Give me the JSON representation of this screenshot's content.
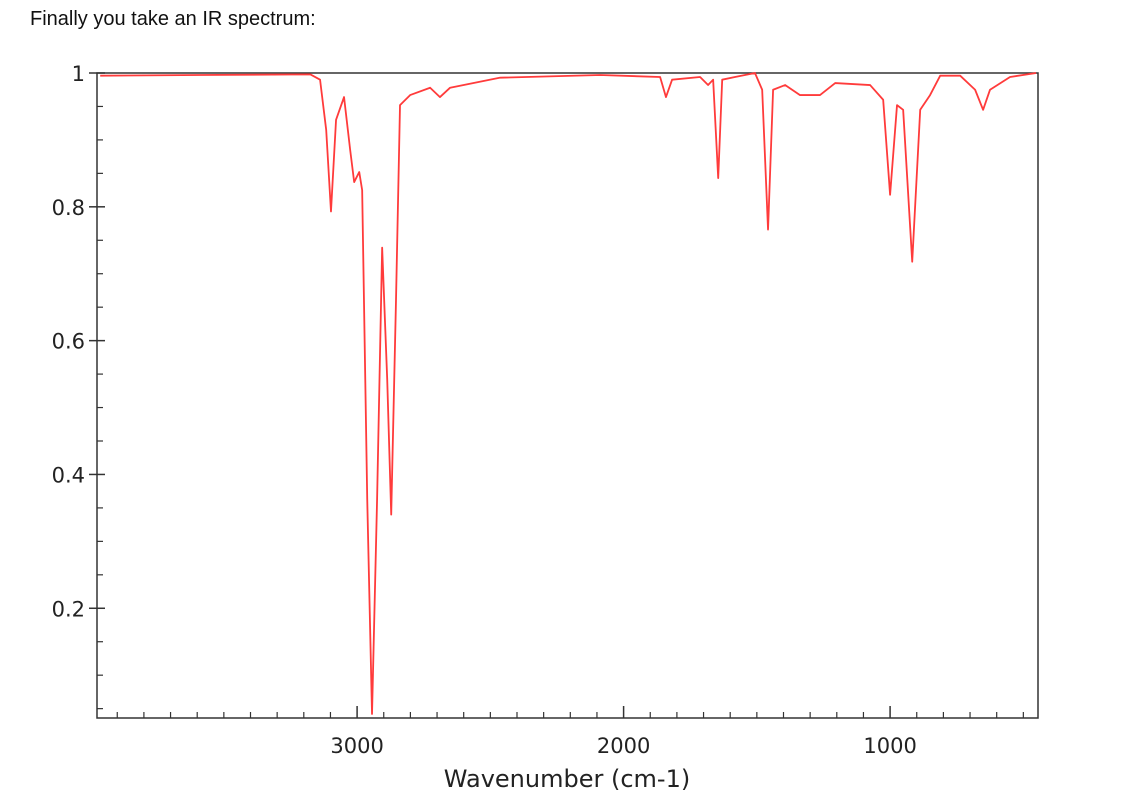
{
  "intro": "Finally you take an IR spectrum:",
  "chart_data": {
    "type": "line",
    "xlabel": "Wavenumber (cm-1)",
    "xlim": [
      3976,
      445
    ],
    "ylim": [
      0.036,
      1
    ],
    "xticks": [
      3000,
      2000,
      1000
    ],
    "yticks": [
      0.2,
      0.4,
      0.6,
      0.8,
      1
    ],
    "xminorticks": [
      3900,
      3800,
      3700,
      3600,
      3500,
      3400,
      3300,
      3200,
      3100,
      2900,
      2800,
      2700,
      2600,
      2500,
      2400,
      2300,
      2200,
      2100,
      1900,
      1800,
      1700,
      1600,
      1500,
      1400,
      1300,
      1200,
      1100,
      900,
      800,
      700,
      600,
      500
    ],
    "yminorticks": [
      0.05,
      0.1,
      0.15,
      0.25,
      0.3,
      0.35,
      0.45,
      0.5,
      0.55,
      0.65,
      0.7,
      0.75,
      0.85,
      0.9,
      0.95
    ],
    "series": [
      {
        "color": "#ff3b3b",
        "x": [
          3964,
          3589,
          3176,
          3139,
          3116,
          3098,
          3079,
          3049,
          3026,
          3011,
          2992,
          2981,
          2962,
          2944,
          2925,
          2906,
          2887,
          2872,
          2854,
          2839,
          2801,
          2726,
          2689,
          2651,
          2463,
          2088,
          1863,
          1841,
          1818,
          1713,
          1683,
          1664,
          1645,
          1630,
          1582,
          1507,
          1480,
          1458,
          1439,
          1394,
          1338,
          1263,
          1206,
          1075,
          1026,
          1000,
          974,
          951,
          917,
          887,
          850,
          812,
          737,
          681,
          651,
          625,
          550,
          452
        ],
        "values": [
          0.996,
          0.997,
          0.998,
          0.99,
          0.915,
          0.793,
          0.93,
          0.964,
          0.885,
          0.837,
          0.852,
          0.825,
          0.363,
          0.042,
          0.363,
          0.739,
          0.542,
          0.34,
          0.661,
          0.952,
          0.967,
          0.978,
          0.964,
          0.978,
          0.993,
          0.997,
          0.994,
          0.964,
          0.99,
          0.994,
          0.982,
          0.99,
          0.843,
          0.99,
          0.994,
          1.0,
          0.975,
          0.766,
          0.975,
          0.982,
          0.967,
          0.967,
          0.985,
          0.982,
          0.96,
          0.818,
          0.952,
          0.945,
          0.718,
          0.945,
          0.967,
          0.996,
          0.996,
          0.975,
          0.945,
          0.975,
          0.994,
          1.0
        ]
      }
    ]
  }
}
